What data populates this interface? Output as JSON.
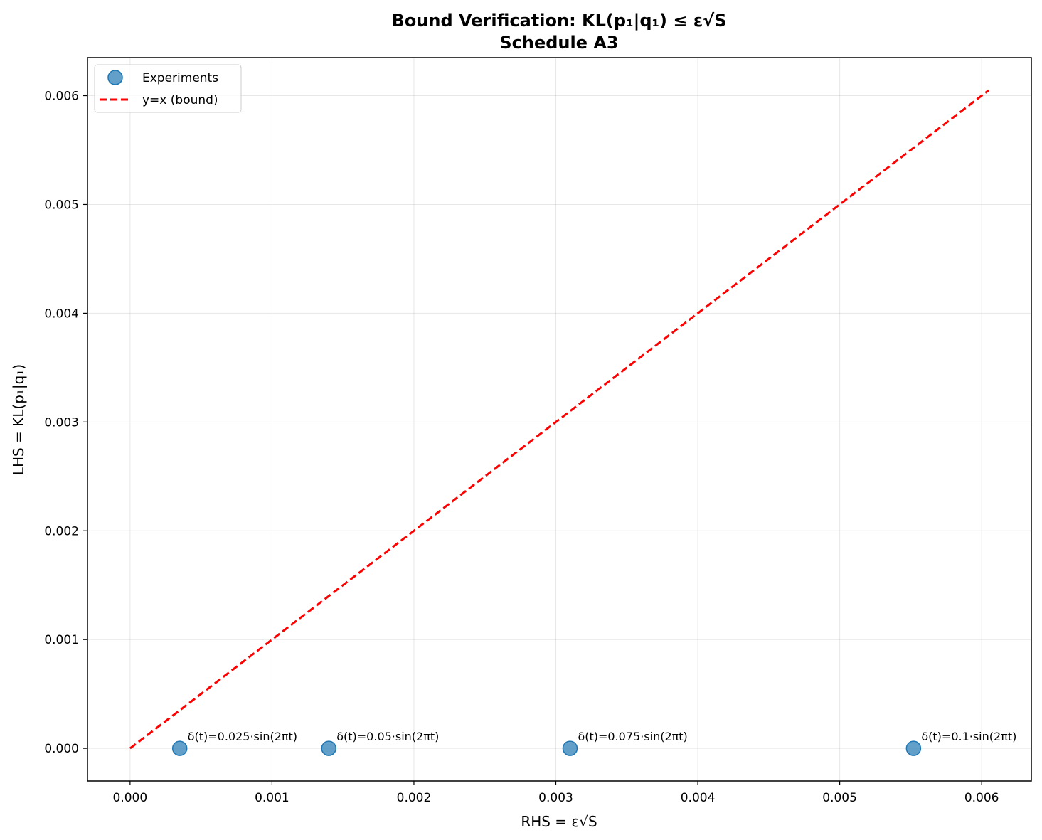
{
  "chart_data": {
    "type": "scatter",
    "title": "Bound Verification: KL(p₁|q₁) ≤ ε√S",
    "subtitle": "Schedule A3",
    "xlabel": "RHS = ε√S",
    "ylabel": "LHS = KL(p₁|q₁)",
    "xlim": [
      -0.0003,
      0.00635
    ],
    "ylim": [
      -0.0003,
      0.00635
    ],
    "xticks": [
      "0.000",
      "0.001",
      "0.002",
      "0.003",
      "0.004",
      "0.005",
      "0.006"
    ],
    "yticks": [
      "0.000",
      "0.001",
      "0.002",
      "0.003",
      "0.004",
      "0.005",
      "0.006"
    ],
    "grid": true,
    "legend_position": "top-left",
    "series": [
      {
        "name": "Experiments",
        "type": "scatter",
        "color": "#1f77b4",
        "points": [
          {
            "x": 0.00035,
            "y": 0.0,
            "label": "δ(t)=0.025·sin(2πt)"
          },
          {
            "x": 0.0014,
            "y": 0.0,
            "label": "δ(t)=0.05·sin(2πt)"
          },
          {
            "x": 0.0031,
            "y": 0.0,
            "label": "δ(t)=0.075·sin(2πt)"
          },
          {
            "x": 0.00552,
            "y": 0.0,
            "label": "δ(t)=0.1·sin(2πt)"
          }
        ]
      },
      {
        "name": "y=x (bound)",
        "type": "line",
        "style": "dashed",
        "color": "#ff0000",
        "x": [
          0.0,
          0.00605
        ],
        "y": [
          0.0,
          0.00605
        ]
      }
    ]
  }
}
